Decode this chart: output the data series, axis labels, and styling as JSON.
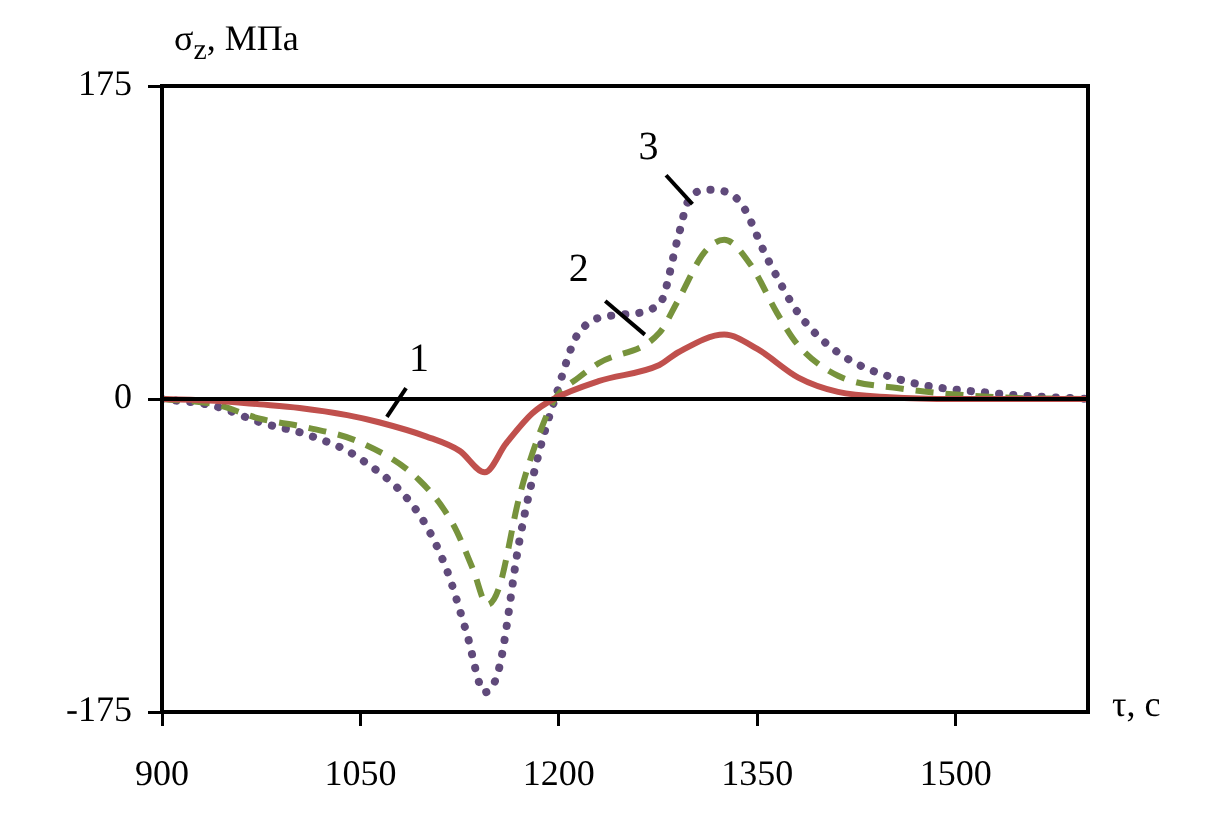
{
  "chart_data": {
    "type": "line",
    "xlabel": "τ, с",
    "ylabel": "σ$_{z}$, МПа",
    "xlim": [
      900,
      1600
    ],
    "xticks": [
      900,
      1050,
      1200,
      1350,
      1500
    ],
    "ylim": [
      -175,
      175
    ],
    "yticks": [
      175,
      0,
      -175
    ],
    "grid": false,
    "legend": false,
    "marker": "none",
    "ref_lines": [
      {
        "axis": "y",
        "value": 0,
        "color": "#000000"
      }
    ],
    "annotations": [
      {
        "text": "1",
        "x": 1070,
        "y": -10
      },
      {
        "text": "2",
        "x": 1265,
        "y": 36
      },
      {
        "text": "3",
        "x": 1301,
        "y": 109
      }
    ],
    "series": [
      {
        "color": "#c0504d",
        "line_style": "solid",
        "x": [
          900,
          940,
          974,
          1004,
          1040,
          1064,
          1100,
          1125,
          1144,
          1160,
          1180,
          1196,
          1230,
          1276,
          1290,
          1325,
          1350,
          1381,
          1411,
          1450,
          1500,
          1600
        ],
        "values": [
          0,
          -1,
          -3,
          -5,
          -9,
          -13,
          -21,
          -29,
          -41,
          -25,
          -8,
          0,
          10,
          19,
          26,
          36,
          28,
          12,
          4,
          1,
          0,
          0
        ]
      },
      {
        "color": "#77933c",
        "line_style": "dashed",
        "x": [
          900,
          940,
          974,
          1010,
          1049,
          1094,
          1120,
          1135,
          1146,
          1155,
          1170,
          1185,
          1197,
          1215,
          1230,
          1276,
          1290,
          1310,
          1325,
          1345,
          1365,
          1381,
          1411,
          1457,
          1532,
          1600
        ],
        "values": [
          0,
          -3,
          -11,
          -16,
          -24,
          -45,
          -70,
          -95,
          -115,
          -105,
          -55,
          -20,
          0,
          12,
          20,
          37,
          55,
          82,
          89,
          75,
          48,
          30,
          13,
          6,
          1,
          0
        ]
      },
      {
        "color": "#604a7b",
        "line_style": "dotted",
        "x": [
          900,
          940,
          974,
          1010,
          1049,
          1094,
          1115,
          1130,
          1144,
          1155,
          1170,
          1185,
          1197,
          1215,
          1245,
          1276,
          1290,
          1298,
          1313,
          1336,
          1358,
          1381,
          1411,
          1457,
          1532,
          1600
        ],
        "values": [
          0,
          -4,
          -13,
          -20,
          -33,
          -64,
          -95,
          -130,
          -164,
          -150,
          -80,
          -30,
          0,
          37,
          47,
          53,
          90,
          111,
          117,
          111,
          78,
          48,
          26,
          11,
          3,
          0
        ]
      }
    ]
  }
}
